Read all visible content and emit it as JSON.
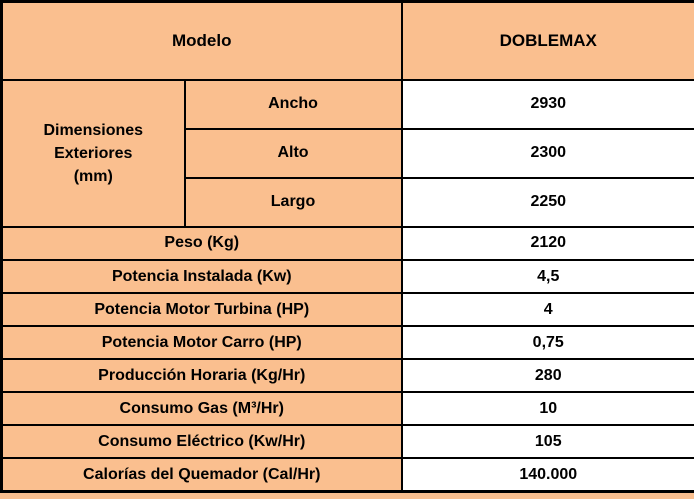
{
  "table": {
    "header": {
      "label": "Modelo",
      "value": "DOBLEMAX"
    },
    "dimensions": {
      "group_label": "Dimensiones Exteriores (mm)",
      "rows": [
        {
          "label": "Ancho",
          "value": "2930"
        },
        {
          "label": "Alto",
          "value": "2300"
        },
        {
          "label": "Largo",
          "value": "2250"
        }
      ]
    },
    "specs": [
      {
        "label": "Peso (Kg)",
        "value": "2120"
      },
      {
        "label": "Potencia Instalada (Kw)",
        "value": "4,5"
      },
      {
        "label": "Potencia Motor Turbina (HP)",
        "value": "4"
      },
      {
        "label": "Potencia Motor Carro (HP)",
        "value": "0,75"
      },
      {
        "label": "Producción Horaria (Kg/Hr)",
        "value": "280"
      },
      {
        "label": "Consumo Gas (M³/Hr)",
        "value": "10"
      },
      {
        "label": "Consumo Eléctrico (Kw/Hr)",
        "value": "105"
      },
      {
        "label": "Calorías del Quemador (Cal/Hr)",
        "value": "140.000"
      }
    ],
    "colors": {
      "header_bg": "#FABF8F",
      "value_bg": "#FFFFFF",
      "border": "#000000",
      "text": "#000000"
    }
  }
}
